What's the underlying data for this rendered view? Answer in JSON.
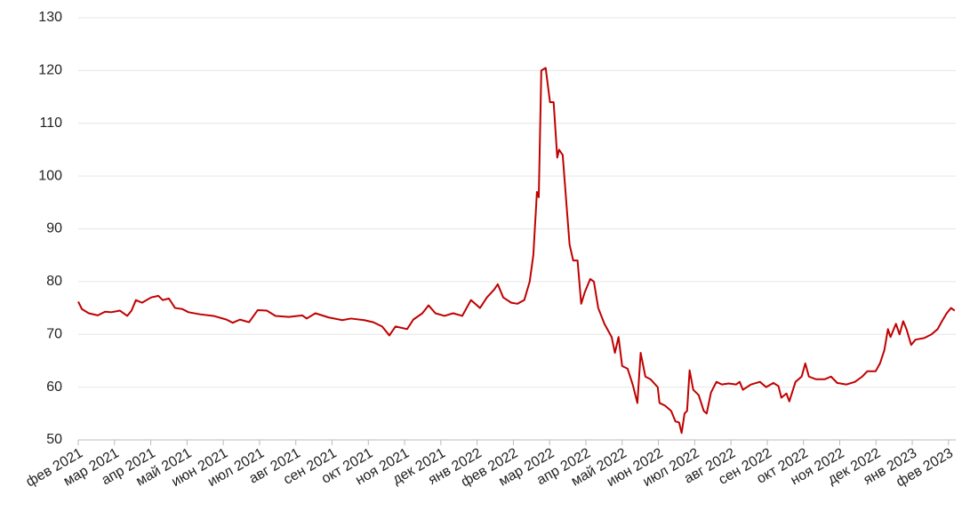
{
  "chart_data": {
    "type": "line",
    "x": [
      0,
      0.1,
      0.29,
      0.54,
      0.74,
      0.91,
      1.15,
      1.35,
      1.47,
      1.59,
      1.76,
      2.01,
      2.21,
      2.33,
      2.5,
      2.67,
      2.87,
      3.04,
      3.36,
      3.73,
      4.09,
      4.26,
      4.46,
      4.71,
      4.95,
      5.2,
      5.44,
      5.81,
      6.18,
      6.3,
      6.54,
      6.91,
      7.28,
      7.52,
      7.89,
      8.14,
      8.38,
      8.58,
      8.75,
      9.07,
      9.24,
      9.49,
      9.66,
      9.85,
      10.1,
      10.34,
      10.59,
      10.83,
      11.08,
      11.27,
      11.47,
      11.57,
      11.72,
      11.94,
      12.11,
      12.3,
      12.45,
      12.55,
      12.65,
      12.7,
      12.77,
      12.89,
      13.01,
      13.11,
      13.21,
      13.26,
      13.36,
      13.46,
      13.55,
      13.65,
      13.77,
      13.87,
      13.97,
      14.12,
      14.22,
      14.34,
      14.51,
      14.71,
      14.8,
      14.9,
      15,
      15.15,
      15.29,
      15.42,
      15.51,
      15.64,
      15.78,
      15.98,
      16.03,
      16.18,
      16.35,
      16.47,
      16.57,
      16.64,
      16.72,
      16.79,
      16.86,
      16.96,
      17.11,
      17.25,
      17.33,
      17.45,
      17.6,
      17.75,
      17.94,
      18.14,
      18.24,
      18.33,
      18.55,
      18.8,
      18.97,
      19.17,
      19.31,
      19.39,
      19.53,
      19.61,
      19.78,
      19.95,
      20.05,
      20.15,
      20.34,
      20.59,
      20.76,
      20.93,
      21.18,
      21.42,
      21.62,
      21.76,
      21.99,
      22.11,
      22.23,
      22.33,
      22.4,
      22.55,
      22.65,
      22.75,
      22.84,
      22.97,
      23.09,
      23.33,
      23.53,
      23.7,
      23.82,
      23.95,
      24.07,
      24.17
    ],
    "values": [
      76.2,
      74.8,
      74,
      73.6,
      74.3,
      74.2,
      74.5,
      73.5,
      74.5,
      76.5,
      76,
      77,
      77.3,
      76.5,
      76.8,
      75,
      74.8,
      74.2,
      73.8,
      73.5,
      72.8,
      72.2,
      72.8,
      72.3,
      74.6,
      74.5,
      73.5,
      73.3,
      73.6,
      73,
      74,
      73.2,
      72.7,
      73,
      72.7,
      72.3,
      71.5,
      69.8,
      71.5,
      71,
      72.8,
      74,
      75.5,
      74,
      73.5,
      74,
      73.5,
      76.5,
      75,
      77,
      78.5,
      79.5,
      77,
      76,
      75.8,
      76.5,
      80,
      85,
      97,
      96,
      120,
      120.5,
      114,
      114,
      103.5,
      105,
      104,
      95,
      87,
      84,
      84,
      75.8,
      78,
      80.5,
      80,
      75,
      72,
      69.5,
      66.5,
      69.5,
      64,
      63.5,
      60.5,
      57,
      66.5,
      62,
      61.5,
      60,
      57,
      56.5,
      55.5,
      53.5,
      53.3,
      51.3,
      55,
      55.5,
      63.2,
      59.5,
      58.5,
      55.5,
      55,
      59,
      61,
      60.5,
      60.7,
      60.5,
      61,
      59.5,
      60.5,
      61,
      60,
      60.8,
      60.2,
      58,
      58.8,
      57.3,
      61,
      62,
      64.5,
      62,
      61.5,
      61.5,
      62,
      60.8,
      60.5,
      61,
      62,
      63,
      63,
      64.5,
      67,
      71,
      69.5,
      72,
      70,
      72.5,
      71,
      68,
      69,
      69.3,
      70,
      71,
      72.5,
      74,
      75,
      74.5
    ],
    "color": "#c00000",
    "xlim": [
      0,
      24.2
    ],
    "xticks": [
      {
        "value": 0,
        "label": "фев 2021"
      },
      {
        "value": 1,
        "label": "мар 2021"
      },
      {
        "value": 2,
        "label": "апр 2021"
      },
      {
        "value": 3,
        "label": "май 2021"
      },
      {
        "value": 4,
        "label": "июн 2021"
      },
      {
        "value": 5,
        "label": "июл 2021"
      },
      {
        "value": 6,
        "label": "авг 2021"
      },
      {
        "value": 7,
        "label": "сен 2021"
      },
      {
        "value": 8,
        "label": "окт 2021"
      },
      {
        "value": 9,
        "label": "ноя 2021"
      },
      {
        "value": 10,
        "label": "дек 2021"
      },
      {
        "value": 11,
        "label": "янв 2022"
      },
      {
        "value": 12,
        "label": "фев 2022"
      },
      {
        "value": 13,
        "label": "мар 2022"
      },
      {
        "value": 14,
        "label": "апр 2022"
      },
      {
        "value": 15,
        "label": "май 2022"
      },
      {
        "value": 16,
        "label": "июн 2022"
      },
      {
        "value": 17,
        "label": "июл 2022"
      },
      {
        "value": 18,
        "label": "авг 2022"
      },
      {
        "value": 19,
        "label": "сен 2022"
      },
      {
        "value": 20,
        "label": "окт 2022"
      },
      {
        "value": 21,
        "label": "ноя 2022"
      },
      {
        "value": 22,
        "label": "дек 2022"
      },
      {
        "value": 23,
        "label": "янв 2023"
      },
      {
        "value": 24,
        "label": "фев 2023"
      }
    ],
    "ylim": [
      50,
      130
    ],
    "yticks": [
      50,
      60,
      70,
      80,
      90,
      100,
      110,
      120,
      130
    ],
    "grid": true
  }
}
